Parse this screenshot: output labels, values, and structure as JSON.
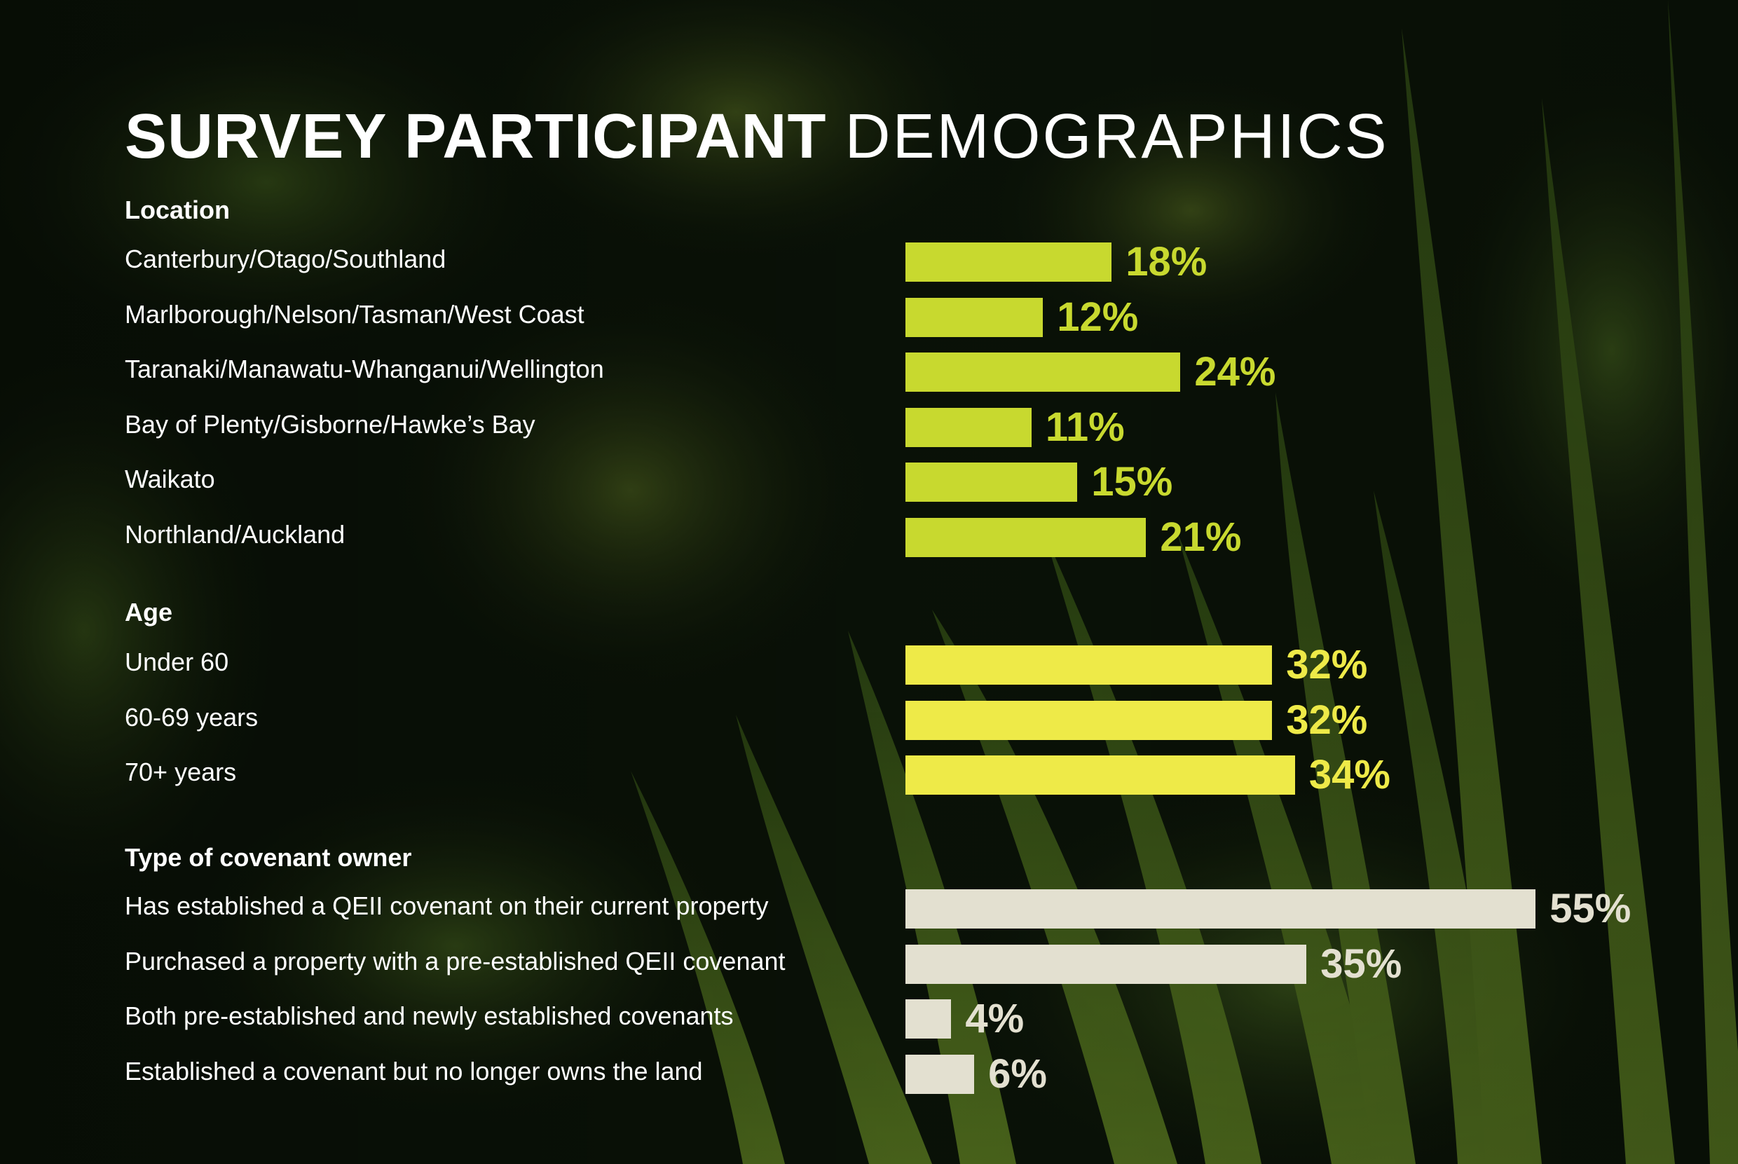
{
  "title": {
    "bold": "SURVEY PARTICIPANT",
    "light": "DEMOGRAPHICS"
  },
  "colors": {
    "location": "#c8d92f",
    "age": "#eeea48",
    "covenant": "#e3e0d0"
  },
  "chart_data": [
    {
      "type": "bar",
      "orientation": "horizontal",
      "title": "Location",
      "categories": [
        "Canterbury/Otago/Southland",
        "Marlborough/Nelson/Tasman/West Coast",
        "Taranaki/Manawatu-Whanganui/Wellington",
        "Bay of Plenty/Gisborne/Hawke’s Bay",
        "Waikato",
        "Northland/Auckland"
      ],
      "values": [
        18,
        12,
        24,
        11,
        15,
        21
      ],
      "value_labels": [
        "18%",
        "12%",
        "24%",
        "11%",
        "15%",
        "21%"
      ],
      "unit": "%"
    },
    {
      "type": "bar",
      "orientation": "horizontal",
      "title": "Age",
      "categories": [
        "Under 60",
        "60-69 years",
        "70+ years"
      ],
      "values": [
        32,
        32,
        34
      ],
      "value_labels": [
        "32%",
        "32%",
        "34%"
      ],
      "unit": "%"
    },
    {
      "type": "bar",
      "orientation": "horizontal",
      "title": "Type of covenant owner",
      "categories": [
        "Has established a QEII covenant on their current property",
        "Purchased a property with a pre-established QEII covenant",
        "Both pre-established and newly established covenants",
        "Established a covenant but no longer owns the land"
      ],
      "values": [
        55,
        35,
        4,
        6
      ],
      "value_labels": [
        "55%",
        "35%",
        "4%",
        "6%"
      ],
      "unit": "%"
    }
  ]
}
